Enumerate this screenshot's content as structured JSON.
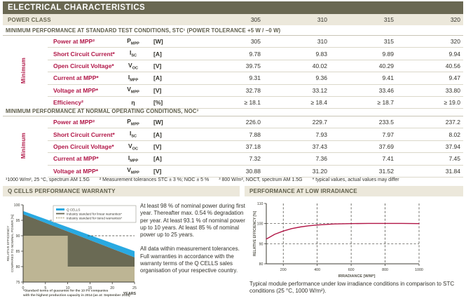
{
  "page_title": "ELECTRICAL CHARACTERISTICS",
  "power_class": {
    "label": "POWER CLASS",
    "values": [
      "305",
      "310",
      "315",
      "320"
    ]
  },
  "stc": {
    "header": "MINIMUM PERFORMANCE AT STANDARD TEST CONDITIONS, STC¹ (POWER TOLERANCE +5 W / −0 W)",
    "side_label": "Minimum",
    "rows": [
      {
        "label": "Power at MPP²",
        "sym": "P",
        "sub": "MPP",
        "unit": "[W]",
        "values": [
          "305",
          "310",
          "315",
          "320"
        ]
      },
      {
        "label": "Short Circuit Current*",
        "sym": "I",
        "sub": "SC",
        "unit": "[A]",
        "values": [
          "9.78",
          "9.83",
          "9.89",
          "9.94"
        ]
      },
      {
        "label": "Open Circuit Voltage*",
        "sym": "V",
        "sub": "OC",
        "unit": "[V]",
        "values": [
          "39.75",
          "40.02",
          "40.29",
          "40.56"
        ]
      },
      {
        "label": "Current at MPP*",
        "sym": "I",
        "sub": "MPP",
        "unit": "[A]",
        "values": [
          "9.31",
          "9.36",
          "9.41",
          "9.47"
        ]
      },
      {
        "label": "Voltage at MPP*",
        "sym": "V",
        "sub": "MPP",
        "unit": "[V]",
        "values": [
          "32.78",
          "33.12",
          "33.46",
          "33.80"
        ]
      },
      {
        "label": "Efficiency²",
        "sym": "η",
        "sub": "",
        "unit": "[%]",
        "values": [
          "≥ 18.1",
          "≥ 18.4",
          "≥ 18.7",
          "≥ 19.0"
        ]
      }
    ]
  },
  "noc": {
    "header": "MINIMUM PERFORMANCE AT NORMAL OPERATING CONDITIONS, NOC³",
    "side_label": "Minimum",
    "rows": [
      {
        "label": "Power at MPP²",
        "sym": "P",
        "sub": "MPP",
        "unit": "[W]",
        "values": [
          "226.0",
          "229.7",
          "233.5",
          "237.2"
        ]
      },
      {
        "label": "Short Circuit Current*",
        "sym": "I",
        "sub": "SC",
        "unit": "[A]",
        "values": [
          "7.88",
          "7.93",
          "7.97",
          "8.02"
        ]
      },
      {
        "label": "Open Circuit Voltage*",
        "sym": "V",
        "sub": "OC",
        "unit": "[V]",
        "values": [
          "37.18",
          "37.43",
          "37.69",
          "37.94"
        ]
      },
      {
        "label": "Current at MPP*",
        "sym": "I",
        "sub": "MPP",
        "unit": "[A]",
        "values": [
          "7.32",
          "7.36",
          "7.41",
          "7.45"
        ]
      },
      {
        "label": "Voltage at MPP*",
        "sym": "V",
        "sub": "MPP",
        "unit": "[V]",
        "values": [
          "30.88",
          "31.20",
          "31.52",
          "31.84"
        ]
      }
    ]
  },
  "footnotes": [
    "¹1000 W/m², 25 °C, spectrum AM 1.5G",
    "² Measurement tolerances STC ± 3 %; NOC ± 5 %",
    "³ 800 W/m², NOCT, spectrum AM 1.5G",
    "* typical values, actual values may differ"
  ],
  "warranty": {
    "header": "Q CELLS PERFORMANCE WARRANTY",
    "paragraph1": "At least 98 % of nominal power during first year. Thereafter max. 0.54 % degradation per year. At least 93.1 % of nominal power up to 10 years. At least 85 % of nominal power up to 25 years.",
    "paragraph2": "All data within measurement tolerances. Full warranties in accordance with the warranty terms of the Q CELLS sales organisation of your respective country."
  },
  "low_irradiance": {
    "header": "PERFORMANCE AT LOW IRRADIANCE",
    "caption": "Typical module performance under low irradiance conditions in comparison to STC conditions (25 °C, 1000 W/m²)."
  },
  "colors": {
    "accent": "#b11747",
    "olive": "#6a6852",
    "beige": "#ece8db",
    "chart_blue": "#29a9e1",
    "chart_olive": "#6a6a54",
    "chart_tan": "#bdb594"
  },
  "chart_data": [
    {
      "type": "area",
      "title": "Q CELLS PERFORMANCE WARRANTY",
      "xlabel": "YEARS",
      "ylabel_lines": [
        "RELATIVE EFFICIENCY",
        "COMPARED TO NOMINAL POWER [%]"
      ],
      "xlim": [
        0,
        25
      ],
      "ylim": [
        75,
        100
      ],
      "xticks": [
        0,
        5,
        10,
        15,
        20,
        25
      ],
      "yticks": [
        100,
        95,
        90,
        85,
        80,
        75
      ],
      "legend_position": "top-right",
      "series": [
        {
          "name": "Q CELLS",
          "color": "#29a9e1",
          "kind": "band",
          "upper": [
            [
              0,
              98
            ],
            [
              25,
              85
            ]
          ],
          "lower": [
            [
              0,
              97
            ],
            [
              25,
              83
            ]
          ]
        },
        {
          "name": "Industry standard for linear warranties*",
          "color": "#6a6a54",
          "kind": "area",
          "line": [
            [
              0,
              97
            ],
            [
              25,
              83
            ]
          ]
        },
        {
          "name": "Industry standard for tiered warranties*",
          "color": "#bdb594",
          "kind": "steps",
          "points": [
            [
              0,
              90
            ],
            [
              10,
              90
            ],
            [
              10,
              80
            ],
            [
              25,
              80
            ]
          ]
        }
      ],
      "guides": [
        {
          "y": 95,
          "x_start": 6
        },
        {
          "y": 90,
          "x_start": 14.5
        }
      ],
      "footnote_lines": [
        "*Standard terms of guarantee for the 10 PV companies",
        "with the highest production capacity in 2014 (as at: September 2014)"
      ]
    },
    {
      "type": "line",
      "title": "PERFORMANCE AT LOW IRRADIANCE",
      "xlabel": "IRRADIANCE [W/M²]",
      "ylabel": "RELATIVE EFFICIENCY [%]",
      "xlim": [
        100,
        1000
      ],
      "ylim": [
        80,
        110
      ],
      "xticks": [
        200,
        400,
        600,
        800,
        1000
      ],
      "yticks": [
        110,
        100,
        90,
        80
      ],
      "ygrid": [
        100,
        90
      ],
      "grid": "dashed",
      "line_color": "#b11747",
      "points": [
        [
          100,
          92.3
        ],
        [
          150,
          94.7
        ],
        [
          200,
          96.3
        ],
        [
          250,
          97.5
        ],
        [
          300,
          98.3
        ],
        [
          350,
          98.9
        ],
        [
          400,
          99.3
        ],
        [
          500,
          99.8
        ],
        [
          600,
          100
        ],
        [
          700,
          100.1
        ],
        [
          800,
          100.1
        ],
        [
          900,
          100.1
        ],
        [
          1000,
          100
        ]
      ]
    }
  ]
}
